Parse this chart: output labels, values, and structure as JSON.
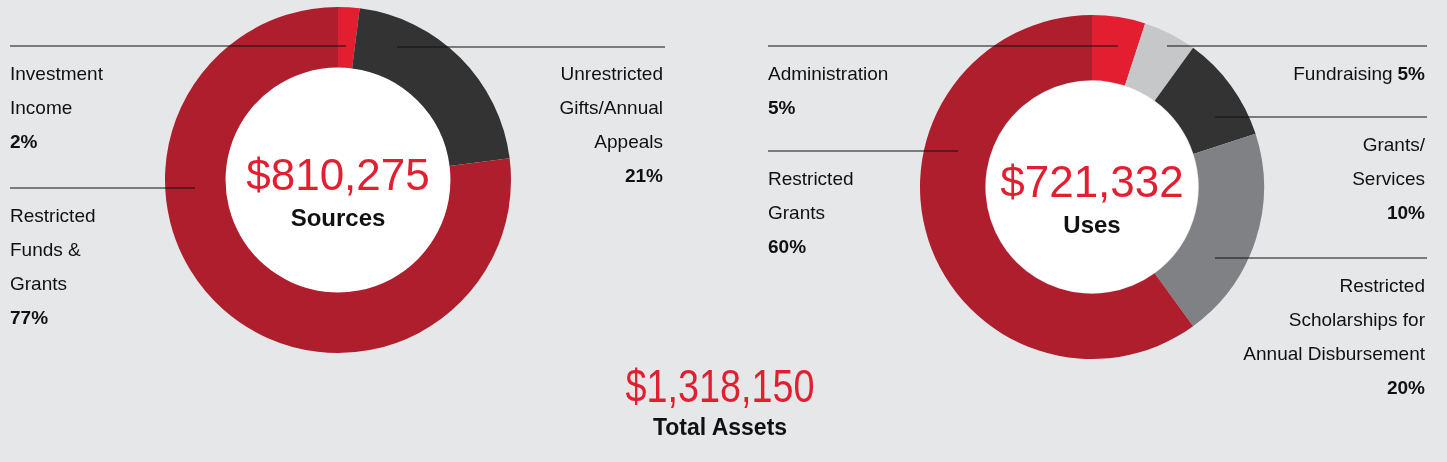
{
  "chart_data": [
    {
      "type": "donut",
      "title": "Sources",
      "annotations": [
        "$810,275"
      ],
      "categories": [
        "Investment Income",
        "Unrestricted Gifts/Annual Appeals",
        "Restricted Funds & Grants"
      ],
      "values": [
        2,
        21,
        77
      ],
      "colors": [
        "#e31e30",
        "#333333",
        "#ae1e2d"
      ],
      "value_labels": [
        "2%",
        "21%",
        "77%"
      ]
    },
    {
      "type": "donut",
      "title": "Uses",
      "annotations": [
        "$721,332"
      ],
      "categories": [
        "Administration",
        "Fundraising",
        "Grants/ Services",
        "Restricted Scholarships for Annual Disbursement",
        "Restricted Grants"
      ],
      "values": [
        5,
        5,
        10,
        20,
        60
      ],
      "colors": [
        "#e31e30",
        "#c6c7c9",
        "#333333",
        "#808184",
        "#ae1e2d"
      ],
      "value_labels": [
        "5%",
        "5%",
        "10%",
        "20%",
        "60%"
      ]
    },
    {
      "type": "other",
      "title": "Total Assets",
      "annotations": [
        "$1,318,150"
      ]
    }
  ]
}
